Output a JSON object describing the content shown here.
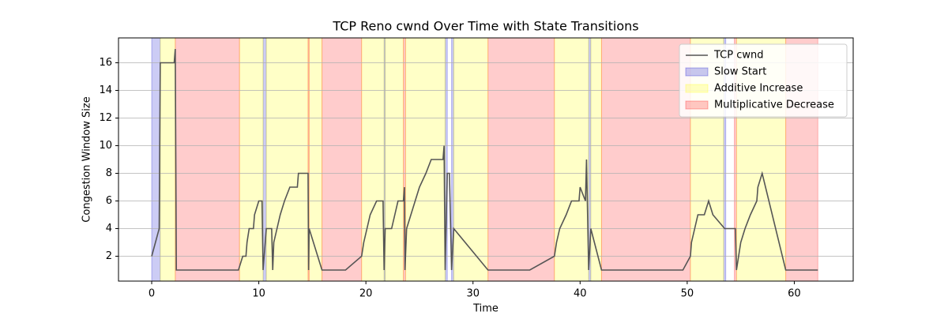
{
  "chart_data": {
    "type": "line",
    "title": "TCP Reno cwnd Over Time with State Transitions",
    "xlabel": "Time",
    "ylabel": "Congestion Window Size",
    "x": [
      0,
      0.7,
      0.8,
      2.1,
      2.2,
      2.3,
      8.1,
      8.5,
      8.8,
      8.9,
      9.1,
      9.5,
      9.6,
      10.0,
      10.3,
      10.4,
      10.7,
      11.2,
      11.3,
      11.4,
      11.7,
      12.0,
      12.4,
      12.9,
      13.6,
      13.7,
      14.6,
      14.65,
      14.7,
      15.9,
      18.1,
      19.6,
      19.8,
      20.1,
      20.4,
      21.0,
      21.6,
      21.7,
      21.8,
      22.4,
      22.7,
      23.0,
      23.5,
      23.6,
      23.65,
      23.8,
      24.2,
      24.6,
      25.0,
      25.6,
      26.1,
      27.2,
      27.3,
      27.4,
      27.6,
      27.8,
      28.0,
      28.2,
      31.4,
      35.3,
      37.6,
      37.8,
      38.1,
      38.7,
      39.2,
      39.9,
      40.0,
      40.5,
      40.6,
      40.8,
      41.0,
      42.0,
      49.6,
      50.3,
      50.4,
      50.7,
      51.0,
      51.6,
      52.0,
      52.4,
      53.5,
      54.5,
      54.6,
      55.0,
      55.4,
      55.9,
      56.5,
      56.6,
      57.0,
      59.2,
      62.2
    ],
    "series": [
      {
        "name": "TCP cwnd",
        "color": "#555555",
        "values": [
          2,
          4,
          16,
          16,
          17,
          1,
          1,
          2,
          2,
          3,
          4,
          4,
          5,
          6,
          6,
          1,
          4,
          4,
          1,
          3,
          4,
          5,
          6,
          7,
          7,
          8,
          8,
          1,
          4,
          1,
          1,
          2,
          3,
          4,
          5,
          6,
          6,
          1,
          4,
          4,
          5,
          6,
          6,
          7,
          1,
          4,
          5,
          6,
          7,
          8,
          9,
          9,
          10,
          1,
          8,
          8,
          1,
          4,
          1,
          1,
          2,
          3,
          4,
          5,
          6,
          6,
          7,
          6,
          9,
          1,
          4,
          1,
          1,
          2,
          3,
          4,
          5,
          5,
          6,
          5,
          4,
          4,
          1,
          3,
          4,
          5,
          6,
          7,
          8,
          1,
          1
        ]
      }
    ],
    "regions": [
      {
        "name": "Slow Start",
        "color": "#0000cc",
        "spans": [
          [
            0,
            0.8
          ],
          [
            10.4,
            10.7
          ],
          [
            21.7,
            21.8
          ],
          [
            27.4,
            27.6
          ],
          [
            28.0,
            28.2
          ],
          [
            40.8,
            41.0
          ],
          [
            53.4,
            53.6
          ]
        ]
      },
      {
        "name": "Additive Increase",
        "color": "#ffff00",
        "spans": [
          [
            0.8,
            2.2
          ],
          [
            8.2,
            10.4
          ],
          [
            10.7,
            14.6
          ],
          [
            14.7,
            15.9
          ],
          [
            19.6,
            21.7
          ],
          [
            21.8,
            23.5
          ],
          [
            23.7,
            27.4
          ],
          [
            28.2,
            31.4
          ],
          [
            37.6,
            40.8
          ],
          [
            41.0,
            42.0
          ],
          [
            50.3,
            53.4
          ],
          [
            54.6,
            59.2
          ]
        ]
      },
      {
        "name": "Multiplicative Decrease",
        "color": "#ff0000",
        "spans": [
          [
            2.2,
            8.2
          ],
          [
            14.6,
            14.7
          ],
          [
            15.9,
            19.6
          ],
          [
            23.5,
            23.7
          ],
          [
            31.4,
            37.6
          ],
          [
            42.0,
            50.3
          ],
          [
            54.4,
            54.6
          ],
          [
            59.2,
            62.2
          ]
        ]
      }
    ],
    "xlim": [
      -3.1,
      65.5
    ],
    "ylim": [
      0.2,
      17.8
    ],
    "xticks": [
      0,
      10,
      20,
      30,
      40,
      50,
      60
    ],
    "yticks": [
      2,
      4,
      6,
      8,
      10,
      12,
      14,
      16
    ],
    "grid": "y",
    "legend": "upper right"
  }
}
